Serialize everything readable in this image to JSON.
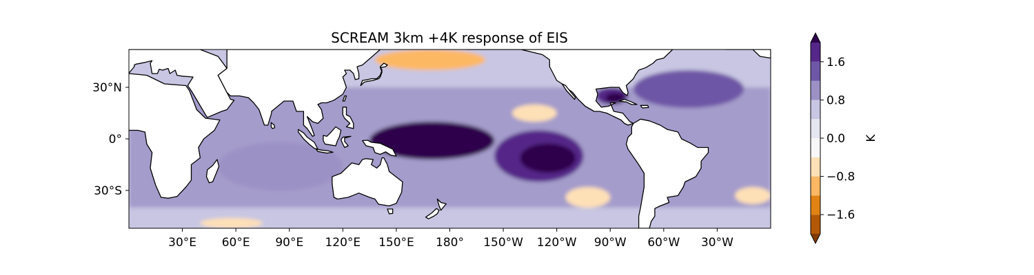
{
  "chart_data": {
    "type": "map",
    "title": "SCREAM 3km +4K response of EIS",
    "projection": "PlateCarree",
    "central_longitude_deg": 180,
    "lon_range": [
      0,
      360
    ],
    "lat_range": [
      -52,
      52
    ],
    "x_ticks": [
      {
        "lon": 30,
        "label": "30°E"
      },
      {
        "lon": 60,
        "label": "60°E"
      },
      {
        "lon": 90,
        "label": "90°E"
      },
      {
        "lon": 120,
        "label": "120°E"
      },
      {
        "lon": 150,
        "label": "150°E"
      },
      {
        "lon": 180,
        "label": "180°"
      },
      {
        "lon": 210,
        "label": "150°W"
      },
      {
        "lon": 240,
        "label": "120°W"
      },
      {
        "lon": 270,
        "label": "90°W"
      },
      {
        "lon": 300,
        "label": "60°W"
      },
      {
        "lon": 330,
        "label": "30°W"
      }
    ],
    "y_ticks": [
      {
        "lat": 30,
        "label": "30°N"
      },
      {
        "lat": 0,
        "label": "0°"
      },
      {
        "lat": -30,
        "label": "30°S"
      }
    ],
    "colorbar": {
      "label": "K",
      "extend": "both",
      "levels": [
        -2.0,
        -1.6,
        -1.2,
        -0.8,
        -0.4,
        0.0,
        0.4,
        0.8,
        1.2,
        1.6,
        2.0
      ],
      "colors": [
        "#b35806",
        "#e08214",
        "#fdb863",
        "#fee0b6",
        "#f7f7f7",
        "#e6e6f0",
        "#c8c6e2",
        "#9b91c5",
        "#6e57a6",
        "#542788"
      ],
      "under_color": "#7f3b08",
      "over_color": "#2d004b",
      "tick_values": [
        -1.6,
        -0.8,
        0.0,
        0.8,
        1.6
      ],
      "tick_labels": [
        "−1.6",
        "−0.8",
        "0.0",
        "0.8",
        "1.6"
      ]
    },
    "features": [
      {
        "name": "west-pacific-maximum",
        "lon_range": [
          135,
          205
        ],
        "lat_range": [
          -12,
          10
        ],
        "value_K": 2.0
      },
      {
        "name": "central-pacific-band",
        "lon_range": [
          205,
          255
        ],
        "lat_range": [
          -25,
          5
        ],
        "value_K": 1.6
      },
      {
        "name": "north-atlantic-maximum",
        "lon_range": [
          283,
          345
        ],
        "lat_range": [
          18,
          40
        ],
        "value_K": 1.4
      },
      {
        "name": "gulf-of-mexico-maximum",
        "lon_range": [
          262,
          280
        ],
        "lat_range": [
          20,
          30
        ],
        "value_K": 1.8
      },
      {
        "name": "indian-ocean-band",
        "lon_range": [
          50,
          120
        ],
        "lat_range": [
          -30,
          -2
        ],
        "value_K": 1.0
      },
      {
        "name": "kuroshio-negative",
        "lon_range": [
          138,
          200
        ],
        "lat_range": [
          40,
          52
        ],
        "value_K": -1.2
      },
      {
        "name": "north-east-pacific-negative",
        "lon_range": [
          215,
          240
        ],
        "lat_range": [
          10,
          20
        ],
        "value_K": -0.6
      },
      {
        "name": "south-east-pacific-negative",
        "lon_range": [
          245,
          270
        ],
        "lat_range": [
          -40,
          -28
        ],
        "value_K": -0.6
      },
      {
        "name": "southern-indian-negative",
        "lon_range": [
          40,
          75
        ],
        "lat_range": [
          -52,
          -46
        ],
        "value_K": -0.8
      },
      {
        "name": "south-atlantic-negative",
        "lon_range": [
          340,
          360
        ],
        "lat_range": [
          -38,
          -28
        ],
        "value_K": -0.6
      }
    ]
  }
}
